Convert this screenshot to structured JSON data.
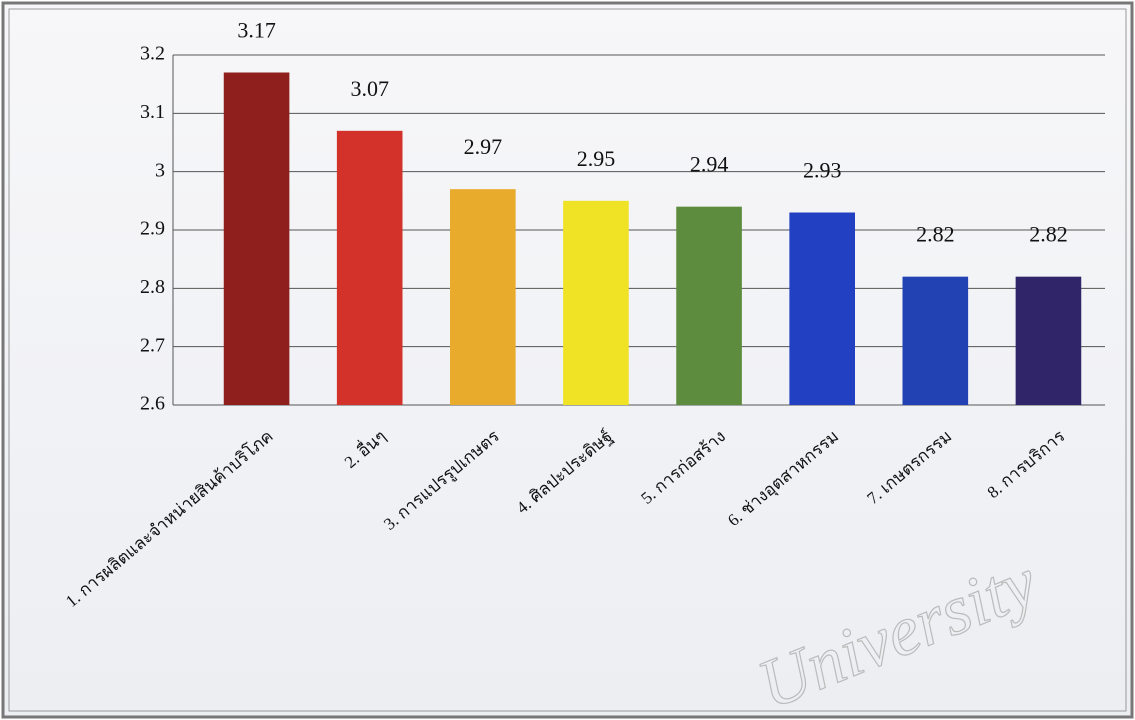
{
  "chart_data": {
    "type": "bar",
    "categories": [
      "1. การผลิตและจำหน่ายสินค้าบริโภค",
      "2. อื่นๆ",
      "3. การแปรรูปเกษตร",
      "4. ศิลปะประดิษฐ์",
      "5. การก่อสร้าง",
      "6. ช่างอุตสาหกรรม",
      "7. เกษตรกรรม",
      "8. การบริการ"
    ],
    "values": [
      3.17,
      3.07,
      2.97,
      2.95,
      2.94,
      2.93,
      2.82,
      2.82
    ],
    "colors": [
      "#8e1f1c",
      "#d2322a",
      "#e9ab2c",
      "#f0e224",
      "#5d8c3e",
      "#2140c2",
      "#2242b4",
      "#2f2568"
    ],
    "ylim": [
      2.6,
      3.2
    ],
    "yticks": [
      2.6,
      2.7,
      2.8,
      2.9,
      3,
      3.1,
      3.2
    ],
    "grid": true,
    "watermark": "University"
  }
}
